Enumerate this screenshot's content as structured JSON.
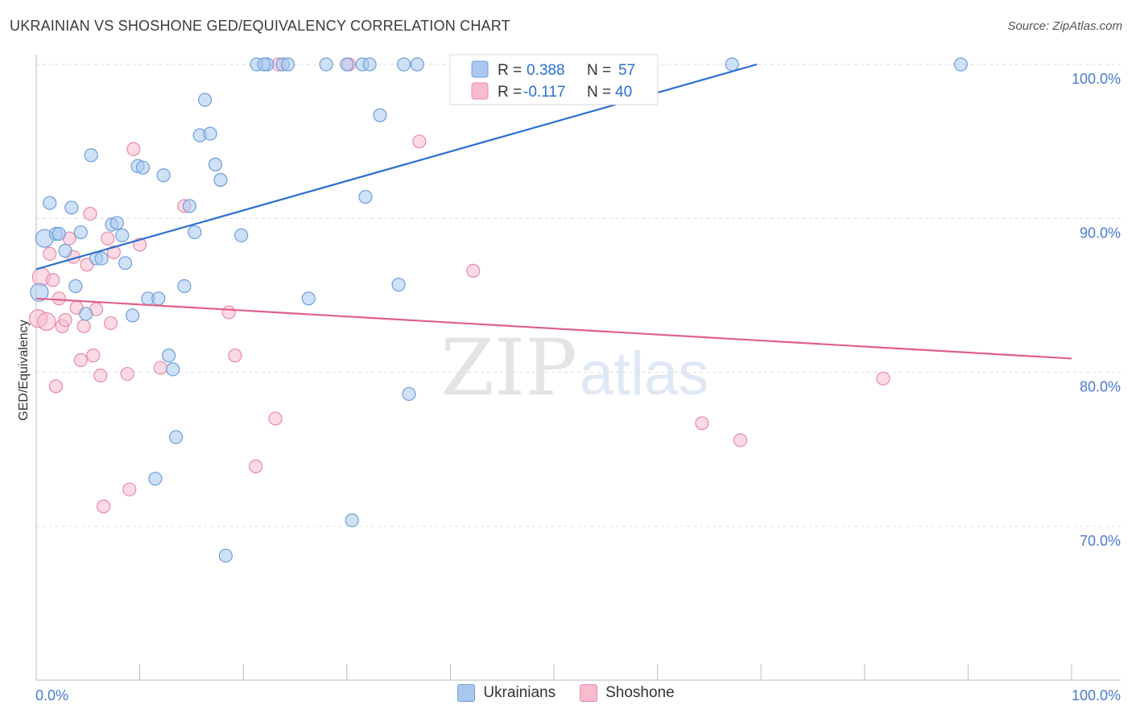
{
  "title": "UKRAINIAN VS SHOSHONE GED/EQUIVALENCY CORRELATION CHART",
  "source": "Source: ZipAtlas.com",
  "watermark": {
    "zip": "ZIP",
    "atlas": "atlas"
  },
  "colors": {
    "blue_fill": "#a8c8f0",
    "blue_stroke": "#6f9ddb",
    "blue_line": "#2b6fd0",
    "pink_fill": "#f8bccd",
    "pink_stroke": "#e88aa6",
    "pink_line": "#e0608a",
    "tick_text": "#4a7bd0",
    "grid": "#dcdcdc"
  },
  "legend": {
    "series1": {
      "r_label": "R =",
      "r_value": "0.388",
      "n_label": "N =",
      "n_value": "57"
    },
    "series2": {
      "r_label": "R =",
      "r_value": "-0.117",
      "n_label": "N =",
      "n_value": "40"
    }
  },
  "bottom_legend": {
    "series1": "Ukrainians",
    "series2": "Shoshone"
  },
  "chart_data": {
    "type": "scatter",
    "title": "UKRAINIAN VS SHOSHONE GED/EQUIVALENCY CORRELATION CHART",
    "xlabel": "",
    "ylabel": "GED/Equivalency",
    "xlim": [
      0,
      100
    ],
    "ylim": [
      60,
      101
    ],
    "x_tick_labels": [
      "0.0%",
      "100.0%"
    ],
    "y_ticks": [
      {
        "value": 100,
        "label": "100.0%"
      },
      {
        "value": 90,
        "label": "90.0%"
      },
      {
        "value": 80,
        "label": "80.0%"
      },
      {
        "value": 70,
        "label": "70.0%"
      }
    ],
    "series": [
      {
        "name": "Ukrainians",
        "R": 0.388,
        "N": 57,
        "trend": {
          "x": [
            0,
            69.6
          ],
          "y": [
            86.7,
            100.0
          ]
        },
        "points": [
          [
            0.3,
            85.2
          ],
          [
            0.8,
            88.7
          ],
          [
            1.3,
            91.0
          ],
          [
            1.9,
            89.0
          ],
          [
            2.2,
            89.0
          ],
          [
            2.8,
            87.9
          ],
          [
            3.4,
            90.7
          ],
          [
            3.8,
            85.6
          ],
          [
            4.3,
            89.1
          ],
          [
            4.8,
            83.8
          ],
          [
            5.3,
            94.1
          ],
          [
            5.8,
            87.4
          ],
          [
            6.3,
            87.4
          ],
          [
            7.3,
            89.6
          ],
          [
            7.8,
            89.7
          ],
          [
            8.3,
            88.9
          ],
          [
            8.6,
            87.1
          ],
          [
            9.3,
            83.7
          ],
          [
            9.8,
            93.4
          ],
          [
            10.3,
            93.3
          ],
          [
            10.8,
            84.8
          ],
          [
            11.8,
            84.8
          ],
          [
            12.3,
            92.8
          ],
          [
            12.8,
            81.1
          ],
          [
            13.2,
            80.2
          ],
          [
            13.5,
            75.8
          ],
          [
            14.3,
            85.6
          ],
          [
            14.8,
            90.8
          ],
          [
            15.3,
            89.1
          ],
          [
            15.8,
            95.4
          ],
          [
            16.3,
            97.7
          ],
          [
            16.8,
            95.5
          ],
          [
            17.3,
            93.5
          ],
          [
            17.8,
            92.5
          ],
          [
            18.3,
            68.1
          ],
          [
            11.5,
            73.1
          ],
          [
            19.8,
            88.9
          ],
          [
            21.3,
            100.0
          ],
          [
            22.3,
            100.0
          ],
          [
            23.8,
            100.0
          ],
          [
            24.3,
            100.0
          ],
          [
            26.3,
            84.8
          ],
          [
            28.0,
            100.0
          ],
          [
            30.0,
            100.0
          ],
          [
            31.5,
            100.0
          ],
          [
            31.8,
            91.4
          ],
          [
            30.5,
            70.4
          ],
          [
            32.2,
            100.0
          ],
          [
            33.2,
            96.7
          ],
          [
            35.0,
            85.7
          ],
          [
            36.0,
            78.6
          ],
          [
            35.5,
            100.0
          ],
          [
            36.8,
            100.0
          ],
          [
            22.0,
            100.0
          ],
          [
            47.5,
            100.0
          ],
          [
            67.2,
            100.0
          ],
          [
            89.3,
            100.0
          ]
        ]
      },
      {
        "name": "Shoshone",
        "R": -0.117,
        "N": 40,
        "trend": {
          "x": [
            0,
            100
          ],
          "y": [
            84.8,
            80.9
          ]
        },
        "points": [
          [
            0.2,
            83.5
          ],
          [
            0.5,
            86.2
          ],
          [
            1.0,
            83.3
          ],
          [
            1.3,
            87.7
          ],
          [
            1.6,
            86.0
          ],
          [
            1.9,
            79.1
          ],
          [
            2.2,
            84.8
          ],
          [
            2.5,
            83.0
          ],
          [
            2.8,
            83.4
          ],
          [
            3.2,
            88.7
          ],
          [
            3.6,
            87.5
          ],
          [
            3.9,
            84.2
          ],
          [
            4.3,
            80.8
          ],
          [
            4.6,
            83.0
          ],
          [
            4.9,
            87.0
          ],
          [
            5.2,
            90.3
          ],
          [
            5.5,
            81.1
          ],
          [
            5.8,
            84.1
          ],
          [
            6.2,
            79.8
          ],
          [
            6.5,
            71.3
          ],
          [
            6.9,
            88.7
          ],
          [
            7.2,
            83.2
          ],
          [
            7.5,
            87.8
          ],
          [
            8.8,
            79.9
          ],
          [
            9.0,
            72.4
          ],
          [
            9.4,
            94.5
          ],
          [
            10.0,
            88.3
          ],
          [
            12.0,
            80.3
          ],
          [
            14.3,
            90.8
          ],
          [
            18.6,
            83.9
          ],
          [
            19.2,
            81.1
          ],
          [
            21.2,
            73.9
          ],
          [
            23.1,
            77.0
          ],
          [
            23.4,
            100.0
          ],
          [
            30.2,
            100.0
          ],
          [
            37.0,
            95.0
          ],
          [
            42.2,
            86.6
          ],
          [
            64.3,
            76.7
          ],
          [
            68.0,
            75.6
          ],
          [
            81.8,
            79.6
          ]
        ]
      }
    ]
  }
}
